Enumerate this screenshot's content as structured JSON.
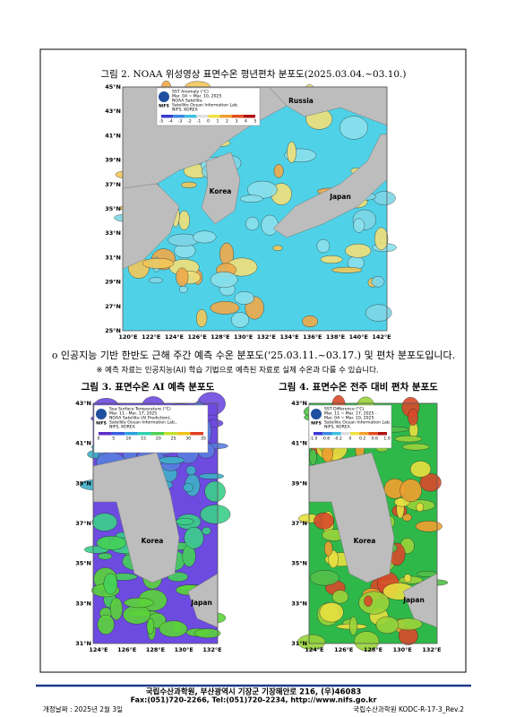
{
  "figure2": {
    "caption": "그림 2. NOAA 위성영상 표면수온 평년편차 분포도(2025.03.04.~03.10.)",
    "map": {
      "lat_labels": [
        "45°N",
        "43°N",
        "41°N",
        "39°N",
        "37°N",
        "35°N",
        "33°N",
        "31°N",
        "29°N",
        "27°N",
        "25°N"
      ],
      "lon_labels": [
        "120°E",
        "122°E",
        "124°E",
        "126°E",
        "128°E",
        "130°E",
        "132°E",
        "134°E",
        "136°E",
        "138°E",
        "140°E",
        "142°E"
      ],
      "legend": [
        "SST Anomaly (°C)",
        "Mar. 04 ~ Mar. 10, 2025",
        "NOAA Satellite",
        "Satellite Ocean Information Lab.",
        "NIFS, KOREA"
      ],
      "colorbar_labels": [
        "-5",
        "-4",
        "-3",
        "-2",
        "-1",
        "0",
        "1",
        "2",
        "3",
        "4",
        "5"
      ],
      "logo": "NIFS",
      "places": [
        "Russia",
        "Korea",
        "Japan"
      ]
    }
  },
  "body": {
    "bullet": "o 인공지능 기반 한반도 근해 주간 예측 수온 분포도('25.03.11.~03.17.) 및 편차 분포도입니다.",
    "note": "※ 예측 자료는 인공지능(AI) 학습 기법으로 예측된 자료로 실제 수온과 다를 수 있습니다."
  },
  "figure3": {
    "caption": "그림 3. 표면수온 AI 예측 분포도",
    "map": {
      "lat_labels": [
        "43°N",
        "41°N",
        "39°N",
        "37°N",
        "35°N",
        "33°N",
        "31°N"
      ],
      "lon_labels": [
        "124°E",
        "126°E",
        "128°E",
        "130°E",
        "132°E"
      ],
      "legend": [
        "Sea Surface Temperature (°C)",
        "Mar. 11 - Mar. 17, 2025",
        "NOAA Satellite (AI Prediction),",
        "Satellite Ocean Information Lab.,",
        "NIFS, KOREA"
      ],
      "colorbar_labels": [
        "0",
        "5",
        "10",
        "15",
        "20",
        "25",
        "30",
        "35"
      ],
      "logo": "NIFS",
      "places": [
        "Korea",
        "Japan"
      ]
    }
  },
  "figure4": {
    "caption": "그림 4. 표면수온 전주 대비 편차 분포도",
    "map": {
      "lat_labels": [
        "43°N",
        "41°N",
        "39°N",
        "37°N",
        "35°N",
        "33°N",
        "31°N"
      ],
      "lon_labels": [
        "124°E",
        "126°E",
        "128°E",
        "130°E",
        "132°E"
      ],
      "legend": [
        "SST Difference (°C)",
        "Mar. 11 ~ Mar. 17, 2025 -",
        "Mar. 04 ~ Mar. 10, 2025",
        "Satellite Ocean Information Lab.",
        "NIFS, KOREA"
      ],
      "colorbar_labels": [
        "-1.0",
        "-0.6",
        "-0.2",
        "0",
        "0.2",
        "0.6",
        "1.0"
      ],
      "logo": "NIFS",
      "places": [
        "Korea",
        "Japan"
      ]
    }
  },
  "footer": {
    "address": "국립수산과학원, 부산광역시 기장군 기장해안로 216, (우)46083",
    "contact": "Fax:(051)720-2266, Tel:(051)720-2234, http://www.nifs.go.kr",
    "revision": "개정날짜 : 2025년 2월 3일",
    "doc_id": "국립수산과학원 KODC-R-17-3_Rev.2"
  }
}
